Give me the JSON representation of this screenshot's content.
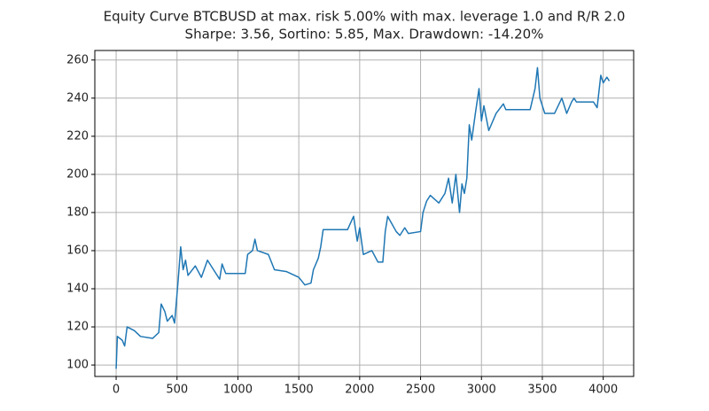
{
  "chart_data": {
    "type": "line",
    "title": "Equity Curve BTCBUSD at max. risk 5.00% with max. leverage 1.0 and R/R 2.0",
    "subtitle": "Sharpe: 3.56, Sortino: 5.85, Max. Drawdown: -14.20%",
    "x": [
      0,
      10,
      50,
      70,
      90,
      150,
      200,
      300,
      350,
      370,
      400,
      420,
      460,
      480,
      510,
      530,
      550,
      570,
      590,
      650,
      700,
      750,
      800,
      850,
      870,
      900,
      1000,
      1060,
      1080,
      1120,
      1140,
      1160,
      1250,
      1300,
      1400,
      1500,
      1550,
      1600,
      1620,
      1660,
      1680,
      1700,
      1900,
      1950,
      1980,
      2000,
      2030,
      2100,
      2150,
      2190,
      2210,
      2230,
      2300,
      2330,
      2370,
      2400,
      2500,
      2520,
      2550,
      2580,
      2650,
      2700,
      2730,
      2760,
      2790,
      2820,
      2840,
      2860,
      2880,
      2900,
      2920,
      2950,
      2980,
      3000,
      3020,
      3060,
      3120,
      3180,
      3200,
      3400,
      3440,
      3460,
      3480,
      3520,
      3600,
      3660,
      3700,
      3740,
      3760,
      3780,
      3920,
      3950,
      3980,
      4000,
      4030,
      4050
    ],
    "values": [
      98,
      115,
      113,
      110,
      120,
      118,
      115,
      114,
      117,
      132,
      128,
      123,
      126,
      122,
      145,
      162,
      150,
      155,
      147,
      152,
      146,
      155,
      150,
      145,
      153,
      148,
      148,
      148,
      158,
      160,
      166,
      160,
      158,
      150,
      149,
      146,
      142,
      143,
      150,
      156,
      162,
      171,
      171,
      178,
      165,
      172,
      158,
      160,
      154,
      154,
      170,
      178,
      170,
      168,
      172,
      169,
      170,
      180,
      186,
      189,
      185,
      190,
      198,
      185,
      200,
      180,
      195,
      190,
      198,
      226,
      218,
      232,
      245,
      228,
      236,
      223,
      232,
      237,
      234,
      234,
      245,
      256,
      240,
      232,
      232,
      240,
      232,
      238,
      240,
      238,
      238,
      235,
      252,
      248,
      251,
      249
    ],
    "color": "#1f77b4",
    "xlim": [
      -175,
      4250
    ],
    "ylim": [
      94,
      265
    ],
    "xticks": [
      0,
      500,
      1000,
      1500,
      2000,
      2500,
      3000,
      3500,
      4000
    ],
    "yticks": [
      100,
      120,
      140,
      160,
      180,
      200,
      220,
      240,
      260
    ],
    "grid": true
  }
}
